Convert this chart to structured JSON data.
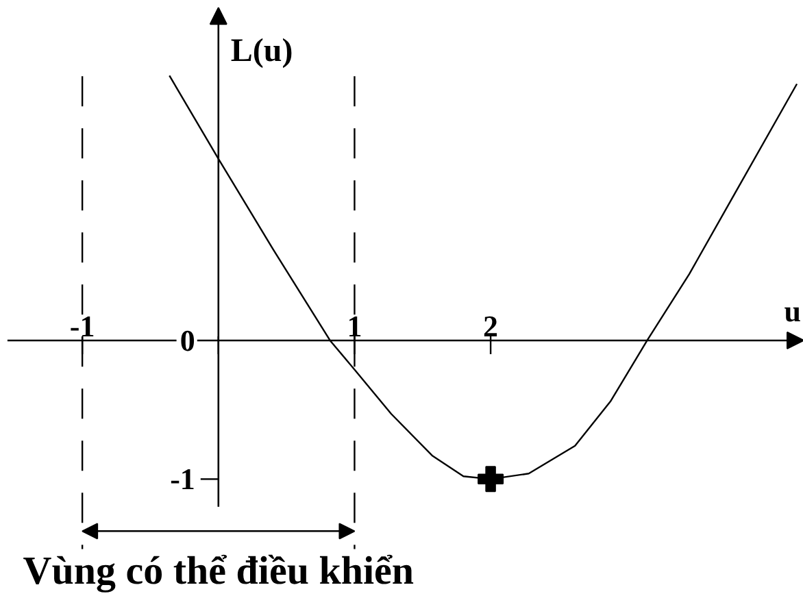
{
  "chart_data": {
    "type": "line",
    "xlabel": "u",
    "ylabel": "L(u)",
    "series": [
      {
        "color": "#000000",
        "x": [
          -0.36,
          0,
          0.4,
          0.82,
          1.0,
          1.27,
          1.57,
          1.8,
          2.0,
          2.28,
          2.62,
          2.88,
          3.15,
          3.46,
          3.8,
          4.25
        ],
        "values": [
          1.91,
          1.31,
          0.66,
          0,
          -0.21,
          -0.53,
          -0.83,
          -0.98,
          -1.0,
          -0.96,
          -0.76,
          -0.44,
          0,
          0.48,
          1.07,
          1.85
        ]
      },
      {
        "type": "scatter",
        "color": "#000000",
        "x": [
          2
        ],
        "values": [
          -1
        ],
        "marker": "cross"
      }
    ],
    "xlim": [
      -1.55,
      4.3
    ],
    "ylim": [
      -1.2,
      2.4
    ],
    "xticks": [
      -1,
      {
        "value": 0,
        "label": null
      },
      1,
      2
    ],
    "yticks": [
      0,
      -1
    ],
    "ref_lines": [
      {
        "axis": "x",
        "value": -1,
        "line_style": "dashed"
      },
      {
        "axis": "x",
        "value": 1,
        "line_style": "dashed"
      }
    ],
    "annotations": [
      "Vùng có thể điều khiển"
    ],
    "grid": false
  }
}
